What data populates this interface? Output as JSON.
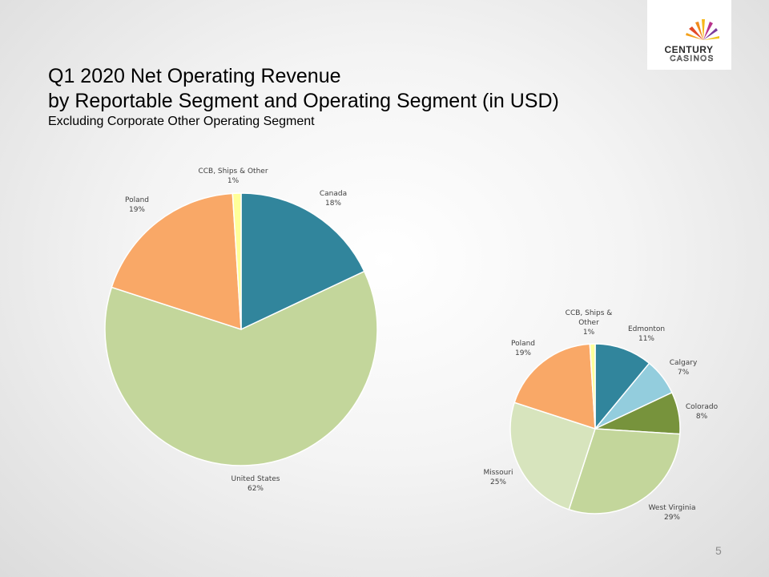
{
  "slide": {
    "title_line1": "Q1 2020 Net Operating Revenue",
    "title_line2": "by Reportable Segment and Operating Segment (in USD)",
    "subtitle": "Excluding Corporate Other Operating Segment",
    "page_number": "5",
    "logo": {
      "word1": "CENTURY",
      "word2": "CASINOS"
    }
  },
  "chart_data": [
    {
      "type": "pie",
      "title": "",
      "slices": [
        {
          "label": "Canada",
          "pct_label": "18%",
          "value": 18,
          "color": "#31859c"
        },
        {
          "label": "United States",
          "pct_label": "62%",
          "value": 62,
          "color": "#c3d69b"
        },
        {
          "label": "Poland",
          "pct_label": "19%",
          "value": 19,
          "color": "#f9a867"
        },
        {
          "label": "CCB, Ships & Other",
          "pct_label": "1%",
          "value": 1,
          "color": "#ffff99"
        }
      ]
    },
    {
      "type": "pie",
      "title": "",
      "slices": [
        {
          "label": "Edmonton",
          "pct_label": "11%",
          "value": 11,
          "color": "#31859c"
        },
        {
          "label": "Calgary",
          "pct_label": "7%",
          "value": 7,
          "color": "#93cddd"
        },
        {
          "label": "Colorado",
          "pct_label": "8%",
          "value": 8,
          "color": "#77933c"
        },
        {
          "label": "West Virginia",
          "pct_label": "29%",
          "value": 29,
          "color": "#c3d69b"
        },
        {
          "label": "Missouri",
          "pct_label": "25%",
          "value": 25,
          "color": "#d7e4bd"
        },
        {
          "label": "Poland",
          "pct_label": "19%",
          "value": 19,
          "color": "#f9a867"
        },
        {
          "label": "CCB, Ships & Other",
          "pct_label": "1%",
          "value": 1,
          "color": "#ffff99"
        }
      ]
    }
  ]
}
